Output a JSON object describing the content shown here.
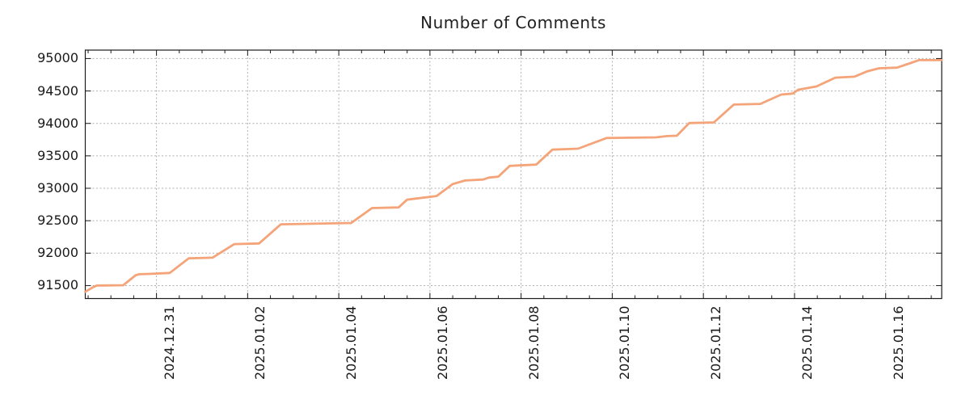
{
  "title": "Number of Comments",
  "style": {
    "line_color": "#f4a478",
    "grid_color": "#b0b0b0",
    "border_color": "#1c1c1c",
    "text_color": "#1a1a1a",
    "background": "#ffffff"
  },
  "chart_data": {
    "type": "line",
    "title": "Number of Comments",
    "xlabel": "",
    "ylabel": "",
    "legend": false,
    "grid": "dashed major gridlines both axes",
    "x_axis": {
      "range_start": "2024-12-29 10:30",
      "range_end": "2025-01-17 05:30",
      "major_tick_every_days": 2,
      "minor_tick_every_days": 0.5,
      "tick_labels": [
        "2024.12.31",
        "2025.01.02",
        "2025.01.04",
        "2025.01.06",
        "2025.01.08",
        "2025.01.10",
        "2025.01.12",
        "2025.01.14",
        "2025.01.16"
      ],
      "tick_label_rotation_deg": -90
    },
    "y_axis": {
      "range": [
        91300,
        95130
      ],
      "ticks": [
        91500,
        92000,
        92500,
        93000,
        93500,
        94000,
        94500,
        95000
      ]
    },
    "series": [
      {
        "name": "number-of-comments",
        "color": "#f4a478",
        "points": [
          [
            "2024-12-29 10:30",
            91405
          ],
          [
            "2024-12-29 14:00",
            91465
          ],
          [
            "2024-12-29 16:30",
            91500
          ],
          [
            "2024-12-30 06:30",
            91505
          ],
          [
            "2024-12-30 13:00",
            91660
          ],
          [
            "2024-12-30 15:00",
            91675
          ],
          [
            "2024-12-30 20:00",
            91680
          ],
          [
            "2024-12-31 07:00",
            91695
          ],
          [
            "2024-12-31 17:00",
            91920
          ],
          [
            "2025-01-01 05:30",
            91930
          ],
          [
            "2025-01-01 17:00",
            92140
          ],
          [
            "2025-01-02 06:00",
            92150
          ],
          [
            "2025-01-02 17:30",
            92445
          ],
          [
            "2025-01-04 06:30",
            92465
          ],
          [
            "2025-01-04 17:30",
            92695
          ],
          [
            "2025-01-05 07:30",
            92705
          ],
          [
            "2025-01-05 12:00",
            92825
          ],
          [
            "2025-01-06 03:30",
            92880
          ],
          [
            "2025-01-06 12:00",
            93065
          ],
          [
            "2025-01-06 18:30",
            93120
          ],
          [
            "2025-01-07 04:00",
            93135
          ],
          [
            "2025-01-07 07:00",
            93165
          ],
          [
            "2025-01-07 12:00",
            93180
          ],
          [
            "2025-01-07 18:00",
            93345
          ],
          [
            "2025-01-08 08:00",
            93365
          ],
          [
            "2025-01-08 16:30",
            93595
          ],
          [
            "2025-01-09 06:00",
            93610
          ],
          [
            "2025-01-09 21:00",
            93775
          ],
          [
            "2025-01-10 23:00",
            93785
          ],
          [
            "2025-01-11 05:00",
            93805
          ],
          [
            "2025-01-11 10:00",
            93810
          ],
          [
            "2025-01-11 16:30",
            94005
          ],
          [
            "2025-01-12 05:30",
            94015
          ],
          [
            "2025-01-12 16:00",
            94290
          ],
          [
            "2025-01-13 06:00",
            94300
          ],
          [
            "2025-01-13 17:00",
            94445
          ],
          [
            "2025-01-13 23:00",
            94460
          ],
          [
            "2025-01-14 02:00",
            94520
          ],
          [
            "2025-01-14 11:30",
            94570
          ],
          [
            "2025-01-14 21:30",
            94705
          ],
          [
            "2025-01-15 07:30",
            94720
          ],
          [
            "2025-01-15 14:30",
            94805
          ],
          [
            "2025-01-15 20:30",
            94850
          ],
          [
            "2025-01-16 06:00",
            94860
          ],
          [
            "2025-01-16 12:30",
            94925
          ],
          [
            "2025-01-16 17:30",
            94975
          ],
          [
            "2025-01-17 05:30",
            94975
          ]
        ]
      }
    ]
  }
}
